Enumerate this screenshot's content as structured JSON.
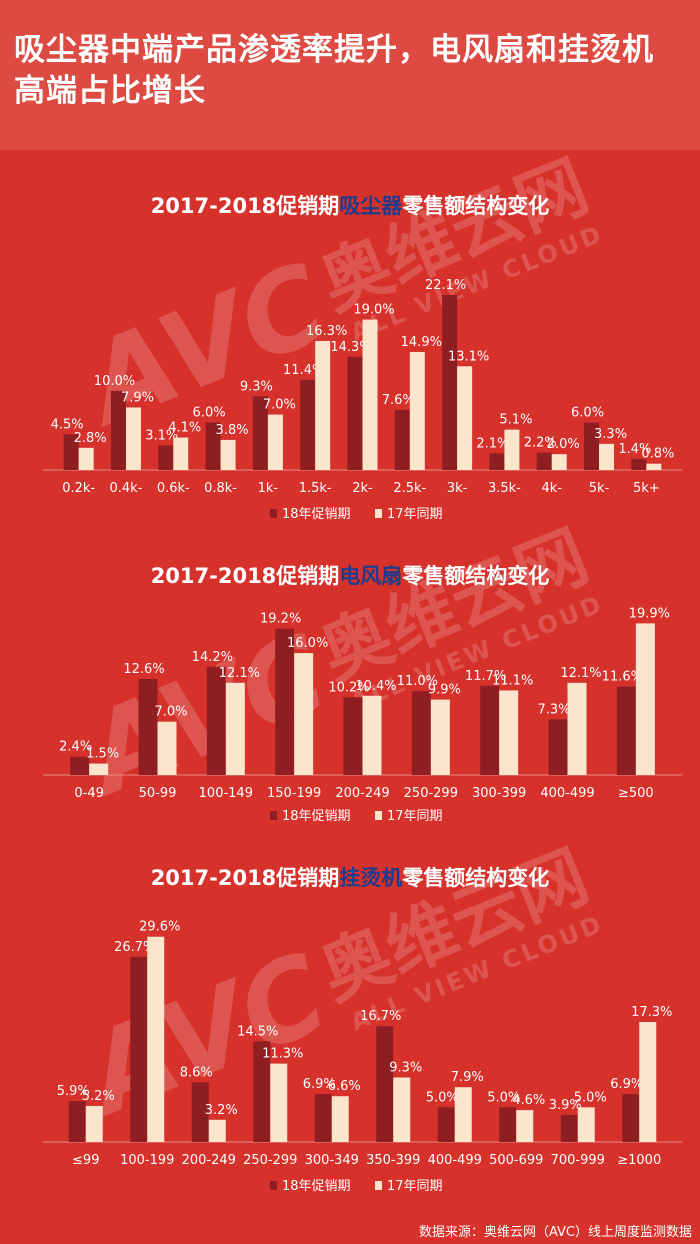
{
  "header": {
    "title": "吸尘器中端产品渗透率提升，电风扇和挂烫机高端占比增长"
  },
  "watermark": {
    "logo": "AVC",
    "brand_cn": "奥维云网",
    "brand_en": "ALL VIEW CLOUD"
  },
  "colors": {
    "background": "#d6312b",
    "header_bg": "#dc4a42",
    "series_2018": "#8e1e22",
    "series_2017": "#fbe6cd",
    "title_highlight": "#1f3b8c"
  },
  "chart_data": [
    {
      "type": "bar",
      "title_prefix": "2017-2018促销期",
      "title_highlight": "吸尘器",
      "title_suffix": "零售额结构变化",
      "categories": [
        "0.2k-",
        "0.4k-",
        "0.6k-",
        "0.8k-",
        "1k-",
        "1.5k-",
        "2k-",
        "2.5k-",
        "3k-",
        "3.5k-",
        "4k-",
        "5k-",
        "5k+"
      ],
      "series": [
        {
          "name": "18年促销期",
          "values": [
            4.5,
            10.0,
            3.1,
            6.0,
            9.3,
            11.4,
            14.3,
            7.6,
            22.1,
            2.1,
            2.2,
            6.0,
            1.4
          ]
        },
        {
          "name": "17年同期",
          "values": [
            2.8,
            7.9,
            4.1,
            3.8,
            7.0,
            16.3,
            19.0,
            14.9,
            13.1,
            5.1,
            2.0,
            3.3,
            0.8
          ]
        }
      ],
      "data_label_suffix": "%",
      "ylim": [
        0,
        24
      ],
      "legend": "bottom-center",
      "grid": false
    },
    {
      "type": "bar",
      "title_prefix": "2017-2018促销期",
      "title_highlight": "电风扇",
      "title_suffix": "零售额结构变化",
      "categories": [
        "0-49",
        "50-99",
        "100-149",
        "150-199",
        "200-249",
        "250-299",
        "300-399",
        "400-499",
        "≥500"
      ],
      "series": [
        {
          "name": "18年促销期",
          "values": [
            2.4,
            12.6,
            14.2,
            19.2,
            10.2,
            11.0,
            11.7,
            7.3,
            11.6
          ]
        },
        {
          "name": "17年同期",
          "values": [
            1.5,
            7.0,
            12.1,
            16.0,
            10.4,
            9.9,
            11.1,
            12.1,
            19.9
          ]
        }
      ],
      "data_label_suffix": "%",
      "ylim": [
        0,
        21
      ],
      "legend": "bottom-center",
      "grid": false
    },
    {
      "type": "bar",
      "title_prefix": "2017-2018促销期",
      "title_highlight": "挂烫机",
      "title_suffix": "零售额结构变化",
      "categories": [
        "≤99",
        "100-199",
        "200-249",
        "250-299",
        "300-349",
        "350-399",
        "400-499",
        "500-699",
        "700-999",
        "≥1000"
      ],
      "series": [
        {
          "name": "18年促销期",
          "values": [
            5.9,
            26.7,
            8.6,
            14.5,
            6.9,
            16.7,
            5.0,
            5.0,
            3.9,
            6.9
          ]
        },
        {
          "name": "17年同期",
          "values": [
            5.2,
            29.6,
            3.2,
            11.3,
            6.6,
            9.3,
            7.9,
            4.6,
            5.0,
            17.3
          ]
        }
      ],
      "data_label_suffix": "%",
      "ylim": [
        0,
        31
      ],
      "legend": "bottom-center",
      "grid": false
    }
  ],
  "footer": {
    "source": "数据来源：奥维云网（AVC）线上周度监测数据"
  }
}
